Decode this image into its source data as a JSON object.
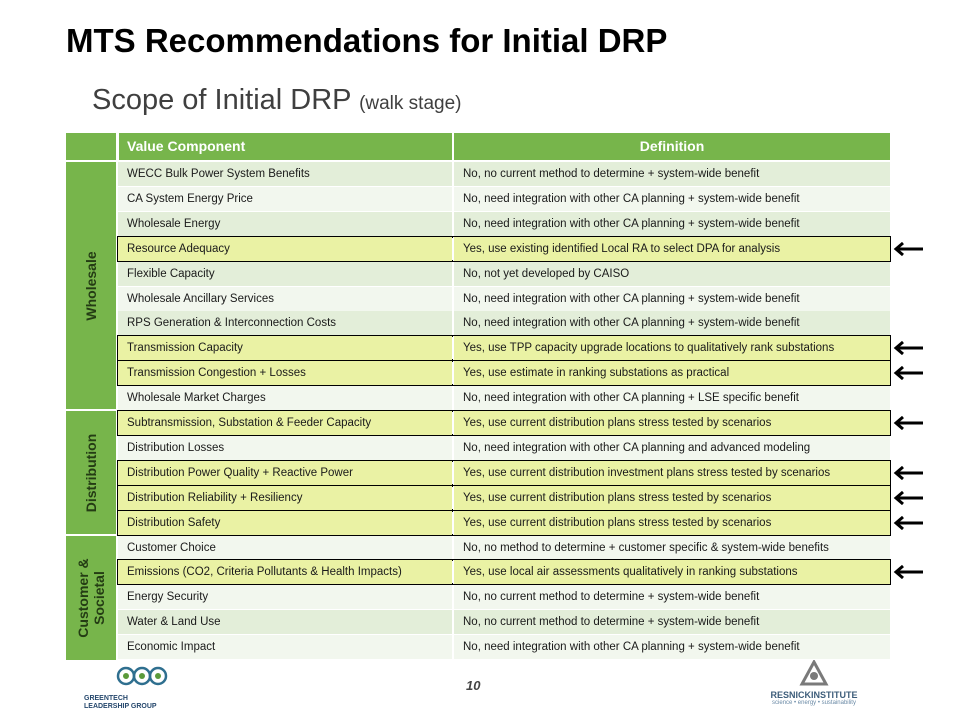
{
  "title": "MTS Recommendations for Initial DRP",
  "subtitle": "Scope of Initial DRP",
  "subtitle_note": "(walk stage)",
  "table": {
    "headers": [
      "Value Component",
      "Definition"
    ],
    "groups": [
      "Wholesale",
      "Distribution",
      "Customer & Societal"
    ],
    "rows": [
      {
        "component": "WECC Bulk Power System Benefits",
        "definition": "No, no current method to determine + system-wide benefit",
        "highlighted": false
      },
      {
        "component": "CA System Energy Price",
        "definition": "No, need integration with other CA planning + system-wide benefit",
        "highlighted": false
      },
      {
        "component": "Wholesale Energy",
        "definition": "No, need integration with other CA planning + system-wide benefit",
        "highlighted": false
      },
      {
        "component": "Resource Adequacy",
        "definition": "Yes, use existing identified Local RA to select DPA for analysis",
        "highlighted": true
      },
      {
        "component": "Flexible Capacity",
        "definition": "No, not yet developed by CAISO",
        "highlighted": false
      },
      {
        "component": "Wholesale Ancillary Services",
        "definition": "No, need integration with other CA planning + system-wide benefit",
        "highlighted": false
      },
      {
        "component": "RPS Generation & Interconnection Costs",
        "definition": "No, need integration with other CA planning + system-wide benefit",
        "highlighted": false
      },
      {
        "component": "Transmission Capacity",
        "definition": "Yes, use TPP capacity upgrade locations to qualitatively rank substations",
        "highlighted": true
      },
      {
        "component": "Transmission Congestion + Losses",
        "definition": "Yes, use estimate in ranking substations as practical",
        "highlighted": true
      },
      {
        "component": "Wholesale Market Charges",
        "definition": "No, need integration with other CA planning + LSE specific benefit",
        "highlighted": false
      },
      {
        "component": "Subtransmission, Substation & Feeder Capacity",
        "definition": "Yes, use current distribution plans stress tested by scenarios",
        "highlighted": true
      },
      {
        "component": "Distribution Losses",
        "definition": "No, need integration with other CA planning and advanced modeling",
        "highlighted": false
      },
      {
        "component": "Distribution Power Quality + Reactive Power",
        "definition": "Yes, use current distribution investment plans stress tested by scenarios",
        "highlighted": true
      },
      {
        "component": "Distribution Reliability + Resiliency",
        "definition": "Yes, use current distribution plans stress tested by scenarios",
        "highlighted": true
      },
      {
        "component": "Distribution Safety",
        "definition": "Yes, use current distribution plans stress tested by scenarios",
        "highlighted": true
      },
      {
        "component": "Customer Choice",
        "definition": "No, no method to determine + customer specific & system-wide benefits",
        "highlighted": false
      },
      {
        "component": "Emissions (CO2, Criteria Pollutants & Health Impacts)",
        "definition": "Yes, use local air assessments qualitatively in ranking substations",
        "highlighted": true
      },
      {
        "component": "Energy Security",
        "definition": "No, no current method to determine + system-wide benefit",
        "highlighted": false
      },
      {
        "component": "Water & Land Use",
        "definition": "No, no current method to determine + system-wide benefit",
        "highlighted": false
      },
      {
        "component": "Economic Impact",
        "definition": "No, need integration with other CA planning + system-wide benefit",
        "highlighted": false
      }
    ]
  },
  "footer": {
    "page_number": "10",
    "left_logo_line1": "GREENTECH",
    "left_logo_line2": "LEADERSHIP GROUP",
    "right_logo_line1": "RESNICKINSTITUTE",
    "right_logo_line2": "science • energy • sustainability"
  },
  "colors": {
    "header_green": "#77b54b",
    "highlight_yellow": "#eaf2a4",
    "row_light": "#f2f7ee",
    "row_dark": "#e3eed9"
  }
}
